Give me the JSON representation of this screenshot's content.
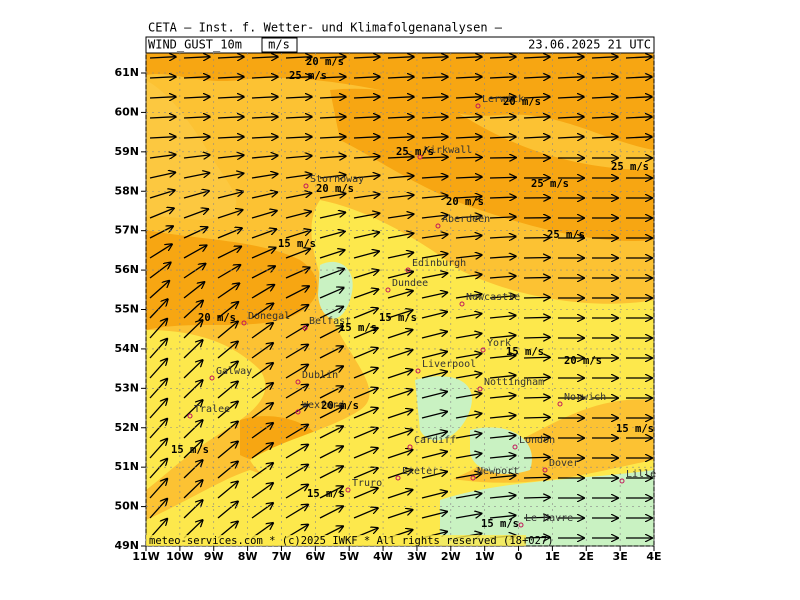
{
  "header": {
    "title": "CETA – Inst. f. Wetter- und Klimafolgenanalysen –",
    "field": "WIND_GUST_10m",
    "unit": "m/s",
    "datetime": "23.06.2025 21 UTC"
  },
  "footer": "meteo-services.com * (c)2025 IWKF * All rights reserved (18+027)",
  "latitudes": [
    "61N",
    "60N",
    "59N",
    "58N",
    "57N",
    "56N",
    "55N",
    "54N",
    "53N",
    "52N",
    "51N",
    "50N",
    "49N"
  ],
  "longitudes": [
    "11W",
    "10W",
    "9W",
    "8W",
    "7W",
    "6W",
    "5W",
    "4W",
    "3W",
    "2W",
    "1W",
    "0",
    "1E",
    "2E",
    "3E",
    "4E"
  ],
  "contour_labels": [
    "20 m/s",
    "25 m/s",
    "20 m/s",
    "25 m/s",
    "25 m/s",
    "20 m/s",
    "25 m/s",
    "20 m/s",
    "25 m/s",
    "15 m/s",
    "20 m/s",
    "15 m/s",
    "15 m/s",
    "15 m/s",
    "20 m/s",
    "20 m/s",
    "15 m/s",
    "15 m/s",
    "15 m/s",
    "15 m/s"
  ],
  "cities": [
    "Lerwick",
    "Kirkwall",
    "Stornoway",
    "Aberdeen",
    "Edinburgh",
    "Dundee",
    "Newcastle",
    "Donegal",
    "Belfast",
    "York",
    "Liverpool",
    "Galway",
    "Dublin",
    "Nottingham",
    "Norwich",
    "Wexford",
    "Tralee",
    "Cardiff",
    "London",
    "Dover",
    "Exeter",
    "Newport",
    "Lille",
    "Truro",
    "Le Havre"
  ]
}
